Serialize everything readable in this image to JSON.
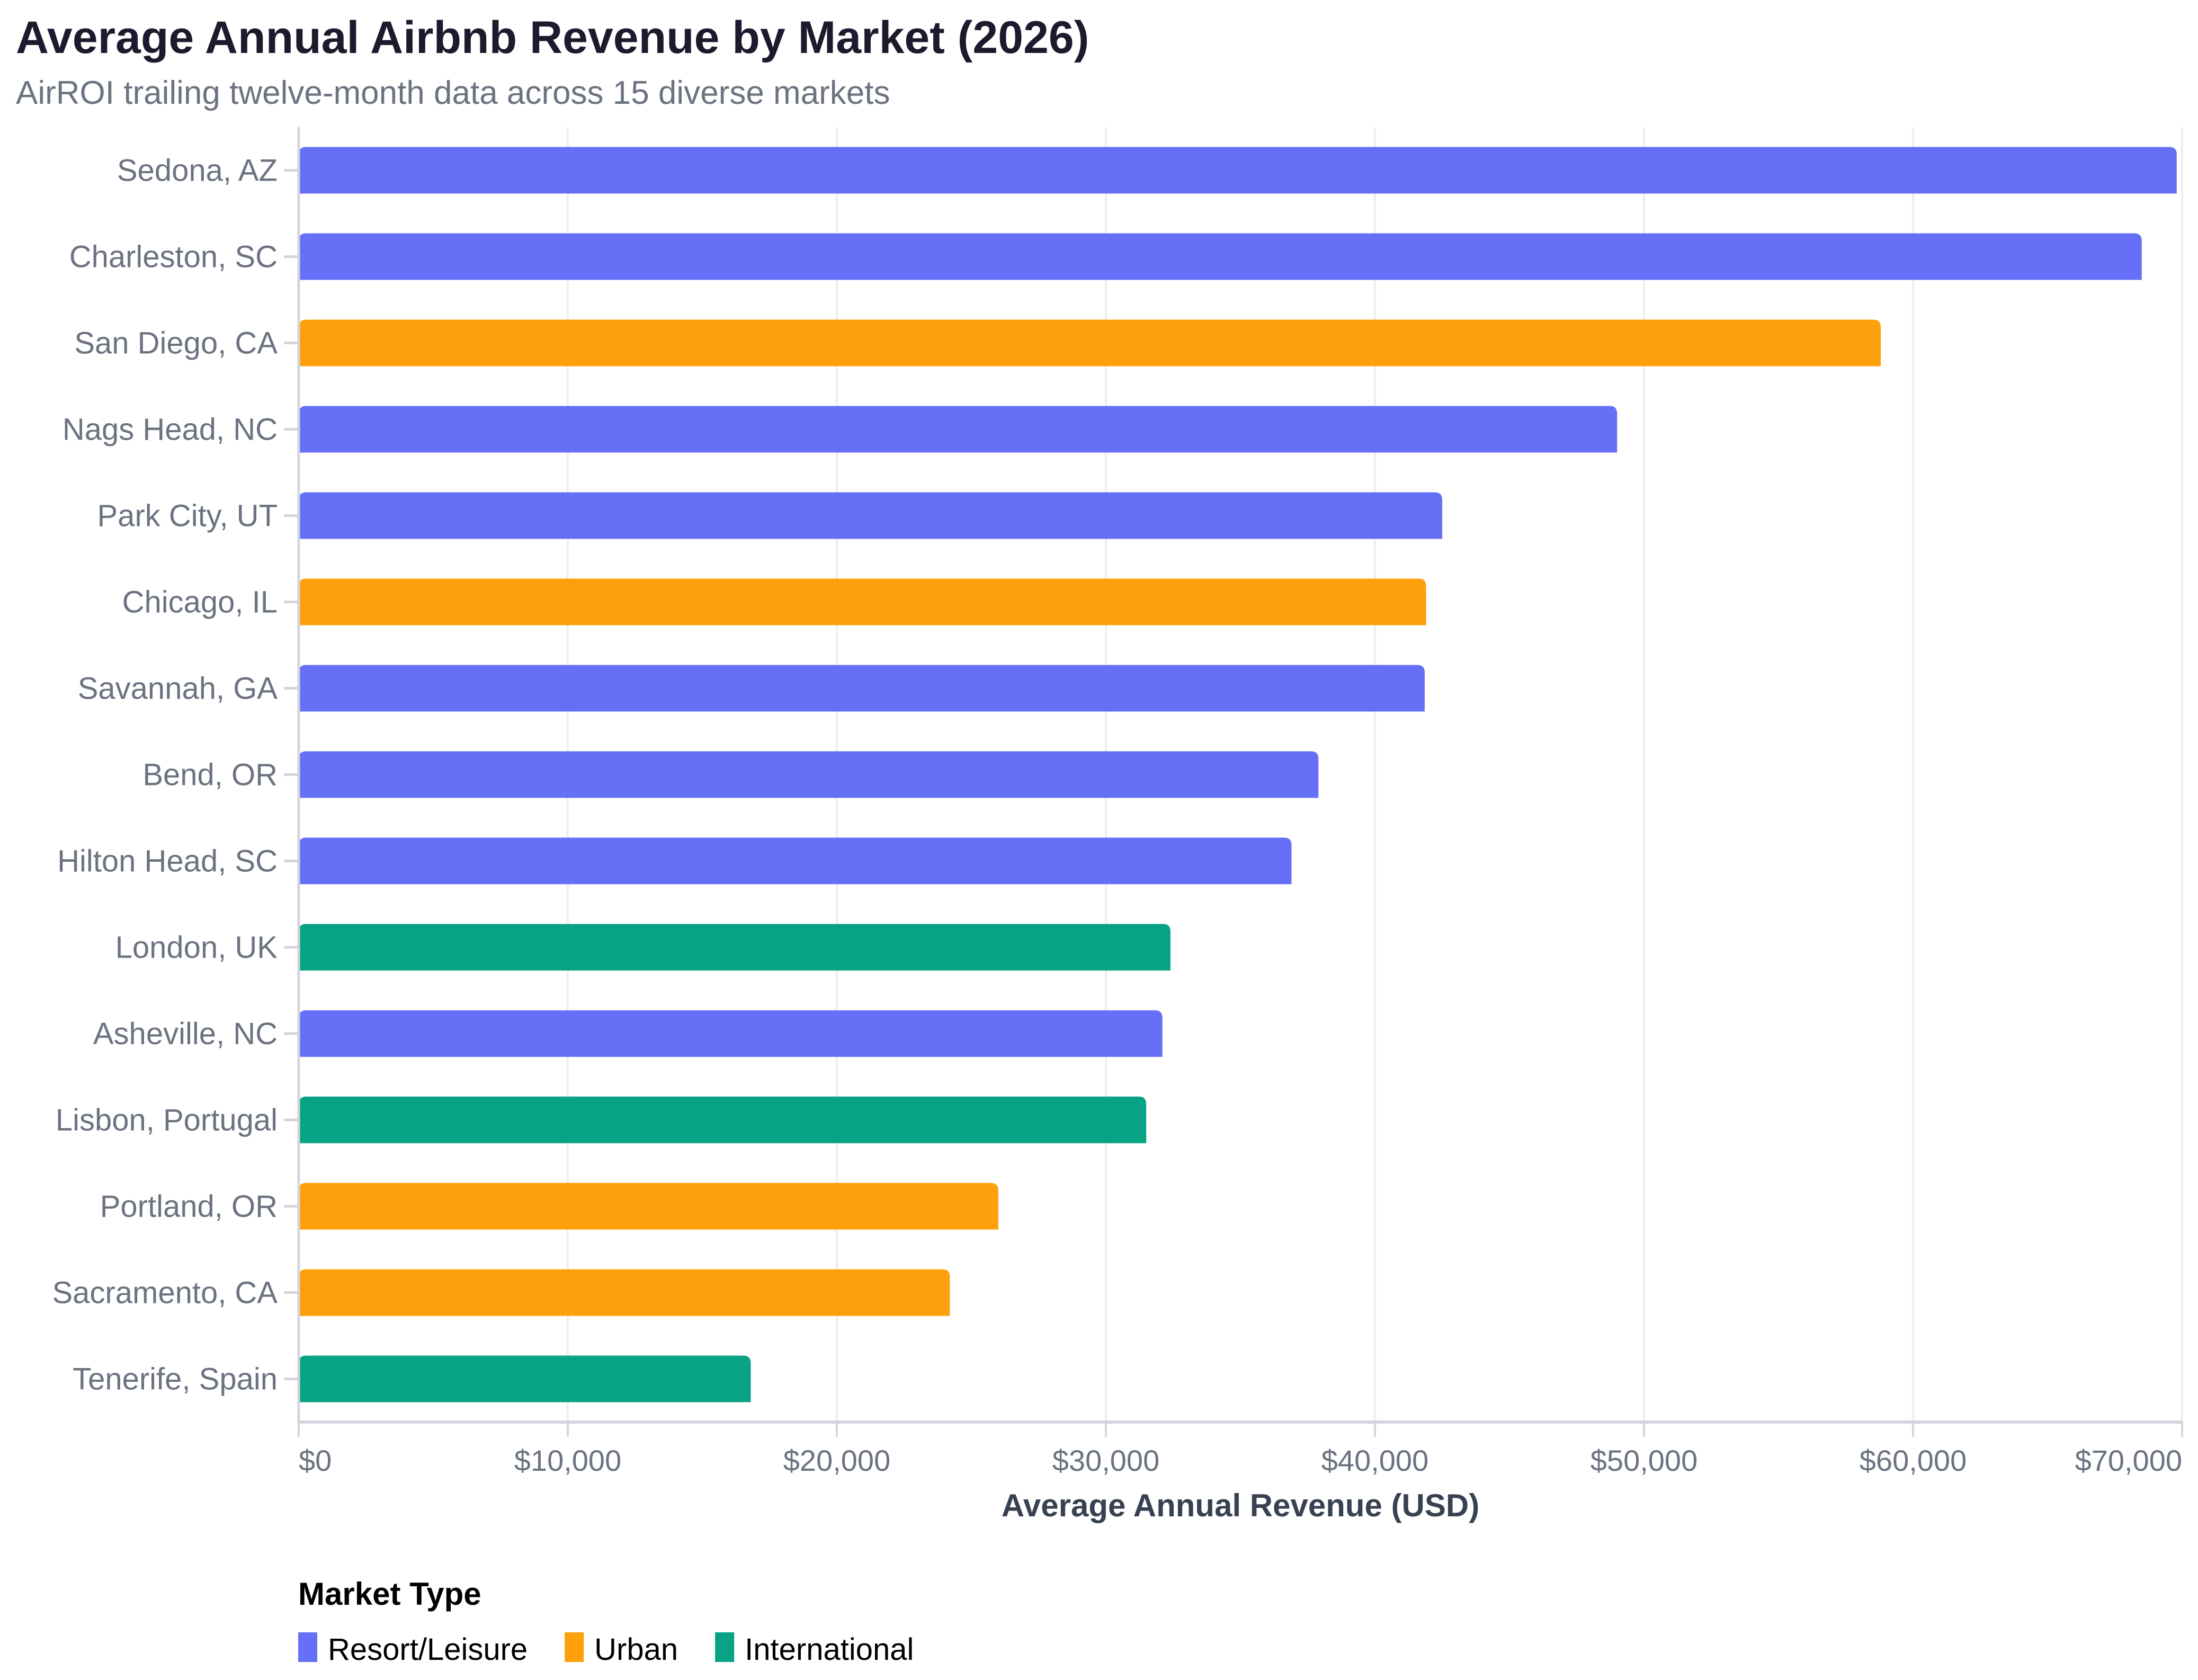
{
  "chart_data": {
    "type": "bar",
    "orientation": "horizontal",
    "title": "Average Annual Airbnb Revenue by Market (2026)",
    "subtitle": "AirROI trailing twelve-month data across 15 diverse markets",
    "xlabel": "Average Annual Revenue (USD)",
    "ylabel": "",
    "xlim": [
      0,
      70000
    ],
    "x_ticks": [
      0,
      10000,
      20000,
      30000,
      40000,
      50000,
      60000,
      70000
    ],
    "x_tick_labels": [
      "$0",
      "$10,000",
      "$20,000",
      "$30,000",
      "$40,000",
      "$50,000",
      "$60,000",
      "$70,000"
    ],
    "grid": true,
    "categories": [
      "Sedona, AZ",
      "Charleston, SC",
      "San Diego, CA",
      "Nags Head, NC",
      "Park City, UT",
      "Chicago, IL",
      "Savannah, GA",
      "Bend, OR",
      "Hilton Head, SC",
      "London, UK",
      "Asheville, NC",
      "Lisbon, Portugal",
      "Portland, OR",
      "Sacramento, CA",
      "Tenerife, Spain"
    ],
    "values": [
      69800,
      68500,
      58800,
      49000,
      42500,
      41900,
      41850,
      37900,
      36900,
      32400,
      32100,
      31500,
      26000,
      24200,
      16800
    ],
    "groups": [
      "Resort/Leisure",
      "Resort/Leisure",
      "Urban",
      "Resort/Leisure",
      "Resort/Leisure",
      "Urban",
      "Resort/Leisure",
      "Resort/Leisure",
      "Resort/Leisure",
      "International",
      "Resort/Leisure",
      "International",
      "Urban",
      "Urban",
      "International"
    ],
    "legend": {
      "title": "Market Type",
      "placement": "bottom-left",
      "entries": [
        {
          "name": "Resort/Leisure",
          "color": "#6670f7"
        },
        {
          "name": "Urban",
          "color": "#fe9f0c"
        },
        {
          "name": "International",
          "color": "#08a385"
        }
      ]
    }
  }
}
